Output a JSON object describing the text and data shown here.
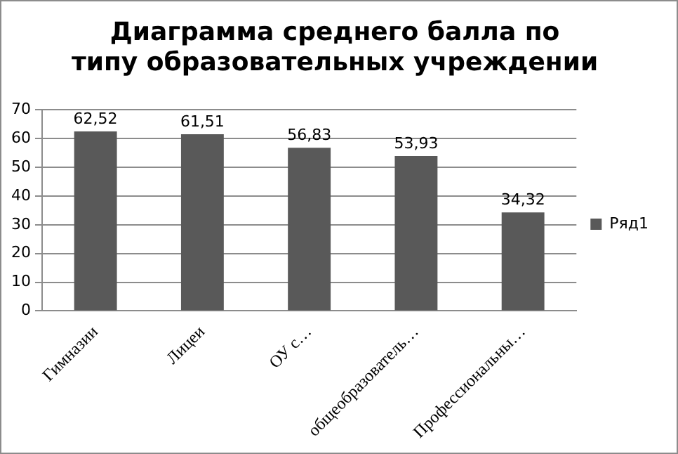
{
  "chart_data": {
    "type": "bar",
    "title": "Диаграмма среднего балла по типу образовательных учреждении",
    "categories": [
      "Гимназии",
      "Лицеи",
      "ОУ с…",
      "общеобразователь…",
      "Профессиональны…"
    ],
    "series": [
      {
        "name": "Ряд1",
        "color": "#595959",
        "values": [
          62.52,
          61.51,
          56.83,
          53.93,
          34.32
        ],
        "value_labels": [
          "62,52",
          "61,51",
          "56,83",
          "53,93",
          "34,32"
        ]
      }
    ],
    "ylim": [
      0,
      70
    ],
    "yticks": [
      0,
      10,
      20,
      30,
      40,
      50,
      60,
      70
    ],
    "grid": "y",
    "legend": "right"
  }
}
